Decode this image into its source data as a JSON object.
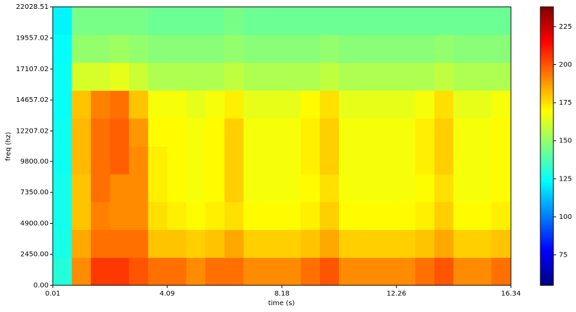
{
  "chart_data": {
    "type": "heatmap",
    "xlabel": "time (s)",
    "ylabel": "freq (hz)",
    "colormap": "jet",
    "xlim": [
      0.01,
      16.34
    ],
    "xticks": [
      0.01,
      4.09,
      8.18,
      12.26,
      16.34
    ],
    "ylim": [
      0,
      22028.51
    ],
    "yticks": [
      {
        "value": 0,
        "label": "0.00"
      },
      {
        "value": 2450,
        "label": "2450.00"
      },
      {
        "value": 4900,
        "label": "4900.00"
      },
      {
        "value": 7350,
        "label": "7350.00"
      },
      {
        "value": 9800,
        "label": "9800.00"
      },
      12207.02,
      14657.02,
      17107.02,
      19557.02,
      22028.51
    ],
    "clim": [
      55,
      238
    ],
    "cticks": [
      75,
      100,
      125,
      150,
      175,
      200,
      225
    ],
    "x": [
      0.35,
      1.03,
      1.71,
      2.39,
      3.07,
      3.75,
      4.43,
      5.11,
      5.79,
      6.47,
      7.15,
      7.83,
      8.51,
      9.19,
      9.87,
      10.55,
      11.23,
      11.91,
      12.59,
      13.27,
      13.95,
      14.63,
      15.31,
      15.99
    ],
    "y": [
      1101,
      3304,
      5507,
      7710,
      9913,
      12116,
      14319,
      16522,
      18725,
      20928
    ],
    "z": [
      [
        130,
        190,
        205,
        205,
        200,
        195,
        195,
        190,
        195,
        195,
        190,
        190,
        190,
        195,
        200,
        190,
        190,
        190,
        190,
        195,
        200,
        190,
        190,
        195
      ],
      [
        128,
        185,
        195,
        195,
        195,
        180,
        180,
        178,
        180,
        185,
        178,
        178,
        178,
        180,
        185,
        178,
        178,
        178,
        178,
        180,
        185,
        178,
        178,
        180
      ],
      [
        127,
        180,
        192,
        190,
        190,
        175,
        172,
        170,
        172,
        175,
        170,
        170,
        170,
        172,
        178,
        170,
        170,
        170,
        170,
        172,
        178,
        170,
        170,
        172
      ],
      [
        127,
        180,
        195,
        190,
        190,
        172,
        170,
        168,
        170,
        178,
        168,
        168,
        168,
        170,
        175,
        168,
        168,
        168,
        168,
        170,
        175,
        168,
        168,
        170
      ],
      [
        126,
        182,
        195,
        198,
        190,
        172,
        170,
        168,
        170,
        178,
        168,
        168,
        168,
        172,
        178,
        168,
        168,
        168,
        168,
        172,
        178,
        168,
        168,
        170
      ],
      [
        126,
        182,
        195,
        198,
        188,
        170,
        170,
        168,
        170,
        178,
        168,
        168,
        168,
        172,
        178,
        168,
        168,
        168,
        168,
        172,
        178,
        168,
        168,
        170
      ],
      [
        125,
        180,
        192,
        195,
        180,
        168,
        168,
        165,
        168,
        172,
        165,
        165,
        165,
        170,
        175,
        165,
        165,
        165,
        165,
        168,
        175,
        165,
        165,
        168
      ],
      [
        125,
        162,
        162,
        165,
        160,
        155,
        155,
        155,
        155,
        158,
        155,
        155,
        155,
        155,
        158,
        155,
        155,
        155,
        155,
        155,
        158,
        155,
        155,
        155
      ],
      [
        124,
        150,
        150,
        152,
        150,
        148,
        148,
        148,
        148,
        150,
        148,
        148,
        148,
        148,
        150,
        148,
        148,
        148,
        148,
        148,
        150,
        148,
        148,
        148
      ],
      [
        122,
        145,
        145,
        145,
        145,
        143,
        143,
        143,
        143,
        145,
        143,
        143,
        143,
        143,
        143,
        143,
        143,
        143,
        143,
        143,
        143,
        143,
        143,
        143
      ]
    ]
  }
}
